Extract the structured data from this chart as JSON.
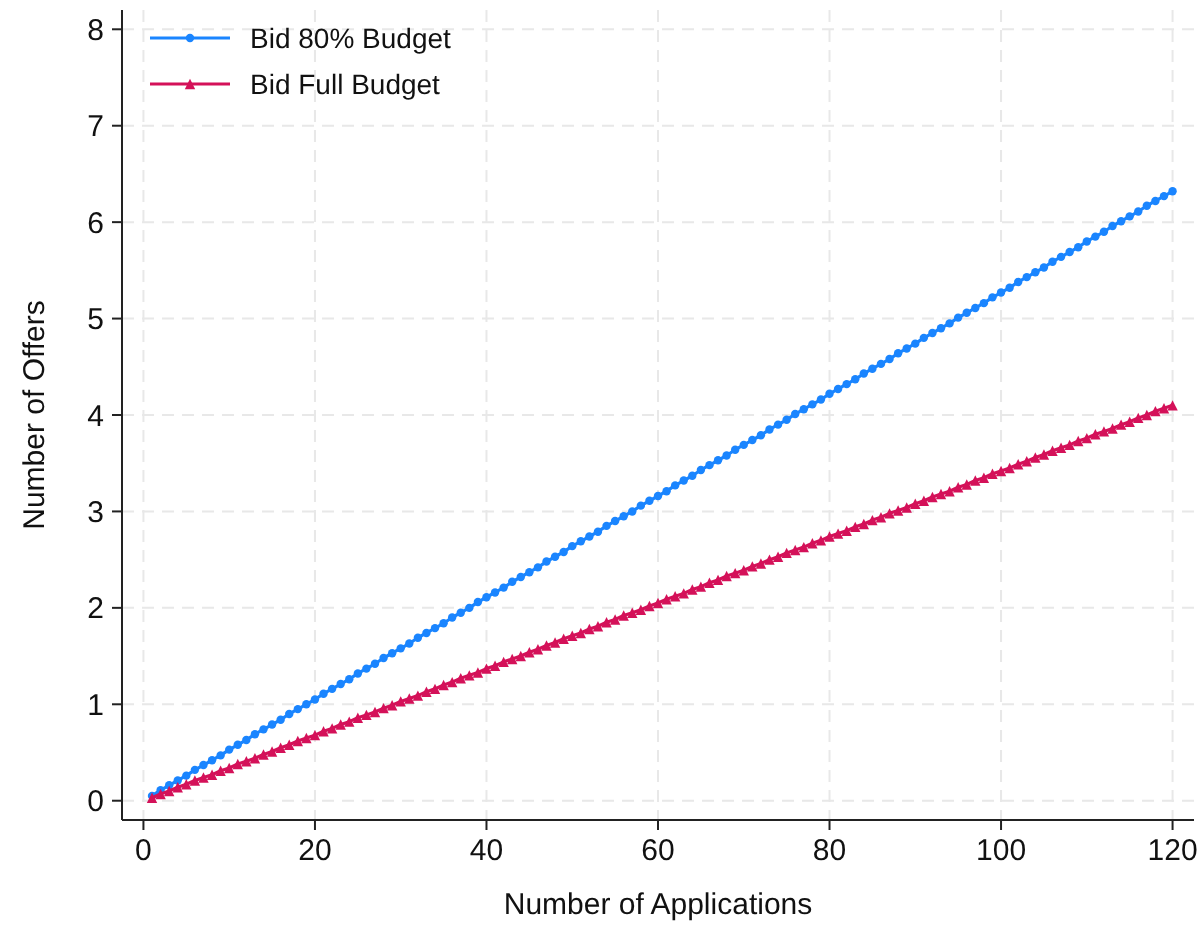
{
  "chart_data": {
    "type": "line",
    "xlabel": "Number of Applications",
    "ylabel": "Number of Offers",
    "xlim": [
      -2.5,
      122.5
    ],
    "ylim": [
      -0.2,
      8.2
    ],
    "xticks": [
      0,
      20,
      40,
      60,
      80,
      100,
      120
    ],
    "yticks": [
      0,
      1,
      2,
      3,
      4,
      5,
      6,
      7,
      8
    ],
    "grid": true,
    "legend": "top left",
    "line_style": "solid",
    "x": [
      1,
      2,
      3,
      4,
      5,
      6,
      7,
      8,
      9,
      10,
      11,
      12,
      13,
      14,
      15,
      16,
      17,
      18,
      19,
      20,
      21,
      22,
      23,
      24,
      25,
      26,
      27,
      28,
      29,
      30,
      31,
      32,
      33,
      34,
      35,
      36,
      37,
      38,
      39,
      40,
      41,
      42,
      43,
      44,
      45,
      46,
      47,
      48,
      49,
      50,
      51,
      52,
      53,
      54,
      55,
      56,
      57,
      58,
      59,
      60,
      61,
      62,
      63,
      64,
      65,
      66,
      67,
      68,
      69,
      70,
      71,
      72,
      73,
      74,
      75,
      76,
      77,
      78,
      79,
      80,
      81,
      82,
      83,
      84,
      85,
      86,
      87,
      88,
      89,
      90,
      91,
      92,
      93,
      94,
      95,
      96,
      97,
      98,
      99,
      100,
      101,
      102,
      103,
      104,
      105,
      106,
      107,
      108,
      109,
      110,
      111,
      112,
      113,
      114,
      115,
      116,
      117,
      118,
      119,
      120
    ],
    "series": [
      {
        "name": "Bid 80% Budget",
        "color": "#1a85ff",
        "marker": "circle",
        "values": [
          0.05,
          0.11,
          0.16,
          0.21,
          0.26,
          0.32,
          0.37,
          0.42,
          0.47,
          0.53,
          0.58,
          0.63,
          0.69,
          0.74,
          0.79,
          0.84,
          0.9,
          0.95,
          1.0,
          1.05,
          1.11,
          1.16,
          1.21,
          1.26,
          1.32,
          1.37,
          1.42,
          1.48,
          1.53,
          1.58,
          1.63,
          1.69,
          1.74,
          1.79,
          1.84,
          1.9,
          1.95,
          2.0,
          2.06,
          2.11,
          2.16,
          2.21,
          2.27,
          2.32,
          2.37,
          2.42,
          2.48,
          2.53,
          2.58,
          2.64,
          2.69,
          2.74,
          2.79,
          2.85,
          2.9,
          2.95,
          3.0,
          3.06,
          3.11,
          3.16,
          3.21,
          3.27,
          3.32,
          3.37,
          3.43,
          3.48,
          3.53,
          3.58,
          3.64,
          3.69,
          3.74,
          3.79,
          3.85,
          3.9,
          3.95,
          4.01,
          4.06,
          4.11,
          4.16,
          4.22,
          4.27,
          4.32,
          4.37,
          4.43,
          4.48,
          4.53,
          4.58,
          4.64,
          4.69,
          4.74,
          4.8,
          4.85,
          4.9,
          4.95,
          5.01,
          5.06,
          5.11,
          5.16,
          5.22,
          5.27,
          5.32,
          5.38,
          5.43,
          5.48,
          5.53,
          5.59,
          5.64,
          5.69,
          5.74,
          5.8,
          5.85,
          5.9,
          5.96,
          6.01,
          6.06,
          6.11,
          6.17,
          6.22,
          6.27,
          6.32
        ]
      },
      {
        "name": "Bid Full Budget",
        "color": "#d41159",
        "marker": "triangle",
        "values": [
          0.03,
          0.07,
          0.1,
          0.14,
          0.17,
          0.21,
          0.24,
          0.27,
          0.31,
          0.34,
          0.38,
          0.41,
          0.44,
          0.48,
          0.51,
          0.55,
          0.58,
          0.62,
          0.65,
          0.68,
          0.72,
          0.75,
          0.79,
          0.82,
          0.86,
          0.89,
          0.92,
          0.96,
          0.99,
          1.03,
          1.06,
          1.09,
          1.13,
          1.16,
          1.2,
          1.23,
          1.27,
          1.3,
          1.33,
          1.37,
          1.4,
          1.44,
          1.47,
          1.5,
          1.54,
          1.57,
          1.61,
          1.64,
          1.68,
          1.71,
          1.74,
          1.78,
          1.81,
          1.85,
          1.88,
          1.92,
          1.95,
          1.98,
          2.02,
          2.05,
          2.09,
          2.12,
          2.15,
          2.19,
          2.22,
          2.26,
          2.29,
          2.33,
          2.36,
          2.39,
          2.43,
          2.46,
          2.5,
          2.53,
          2.57,
          2.6,
          2.63,
          2.67,
          2.7,
          2.74,
          2.77,
          2.8,
          2.84,
          2.87,
          2.91,
          2.94,
          2.98,
          3.01,
          3.04,
          3.08,
          3.11,
          3.15,
          3.18,
          3.21,
          3.25,
          3.28,
          3.32,
          3.35,
          3.39,
          3.42,
          3.45,
          3.49,
          3.52,
          3.56,
          3.59,
          3.63,
          3.66,
          3.69,
          3.73,
          3.76,
          3.8,
          3.83,
          3.86,
          3.9,
          3.93,
          3.97,
          4.0,
          4.04,
          4.07,
          4.1
        ]
      }
    ]
  }
}
